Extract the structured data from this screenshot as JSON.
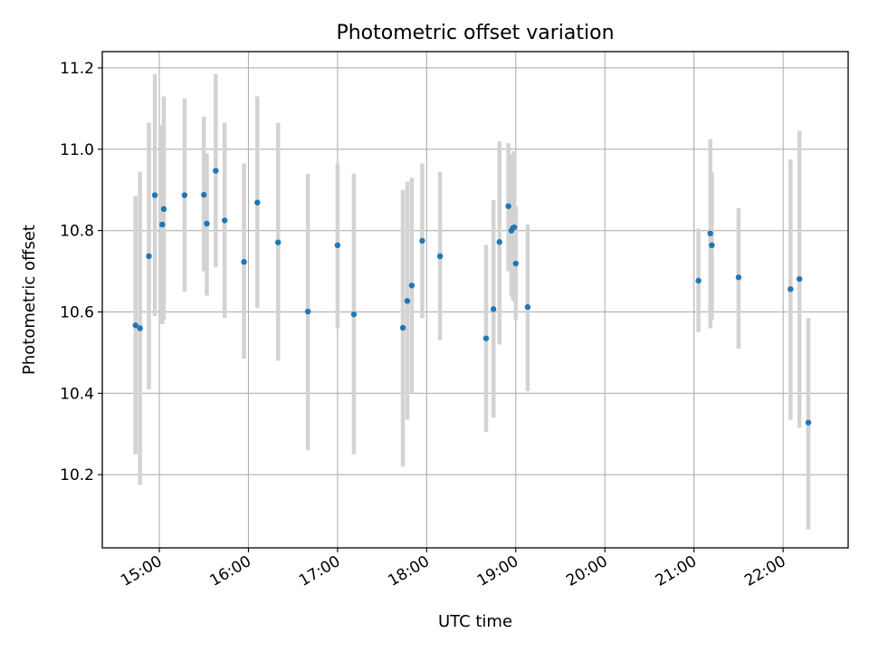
{
  "chart_data": {
    "type": "scatter",
    "title": "Photometric offset variation",
    "xlabel": "UTC time",
    "ylabel": "Photometric offset",
    "x_unit": "hours UTC",
    "xlim": [
      14.36,
      22.73
    ],
    "ylim": [
      10.02,
      11.24
    ],
    "grid": true,
    "marker_color": "#1f77b4",
    "errorbar_color": "#d3d3d3",
    "x_ticks": [
      {
        "value": 15,
        "label": "15:00"
      },
      {
        "value": 16,
        "label": "16:00"
      },
      {
        "value": 17,
        "label": "17:00"
      },
      {
        "value": 18,
        "label": "18:00"
      },
      {
        "value": 19,
        "label": "19:00"
      },
      {
        "value": 20,
        "label": "20:00"
      },
      {
        "value": 21,
        "label": "21:00"
      },
      {
        "value": 22,
        "label": "22:00"
      }
    ],
    "y_ticks": [
      {
        "value": 10.2,
        "label": "10.2"
      },
      {
        "value": 10.4,
        "label": "10.4"
      },
      {
        "value": 10.6,
        "label": "10.6"
      },
      {
        "value": 10.8,
        "label": "10.8"
      },
      {
        "value": 11.0,
        "label": "11.0"
      },
      {
        "value": 11.2,
        "label": "11.2"
      }
    ],
    "points": [
      {
        "x": 14.733,
        "y": 10.567,
        "lo": 10.25,
        "hi": 10.885
      },
      {
        "x": 14.783,
        "y": 10.56,
        "lo": 10.175,
        "hi": 10.945
      },
      {
        "x": 14.883,
        "y": 10.737,
        "lo": 10.41,
        "hi": 11.065
      },
      {
        "x": 14.95,
        "y": 10.887,
        "lo": 10.59,
        "hi": 11.185
      },
      {
        "x": 15.033,
        "y": 10.815,
        "lo": 10.57,
        "hi": 11.06
      },
      {
        "x": 15.05,
        "y": 10.853,
        "lo": 10.58,
        "hi": 11.13
      },
      {
        "x": 15.283,
        "y": 10.887,
        "lo": 10.65,
        "hi": 11.125
      },
      {
        "x": 15.5,
        "y": 10.888,
        "lo": 10.7,
        "hi": 11.08
      },
      {
        "x": 15.533,
        "y": 10.817,
        "lo": 10.64,
        "hi": 10.99
      },
      {
        "x": 15.633,
        "y": 10.947,
        "lo": 10.71,
        "hi": 11.185
      },
      {
        "x": 15.733,
        "y": 10.825,
        "lo": 10.585,
        "hi": 11.065
      },
      {
        "x": 15.95,
        "y": 10.723,
        "lo": 10.485,
        "hi": 10.965
      },
      {
        "x": 16.1,
        "y": 10.869,
        "lo": 10.61,
        "hi": 11.13
      },
      {
        "x": 16.333,
        "y": 10.771,
        "lo": 10.48,
        "hi": 11.065
      },
      {
        "x": 16.667,
        "y": 10.601,
        "lo": 10.26,
        "hi": 10.94
      },
      {
        "x": 17.0,
        "y": 10.764,
        "lo": 10.56,
        "hi": 10.965
      },
      {
        "x": 17.183,
        "y": 10.594,
        "lo": 10.25,
        "hi": 10.94
      },
      {
        "x": 17.733,
        "y": 10.561,
        "lo": 10.22,
        "hi": 10.9
      },
      {
        "x": 17.783,
        "y": 10.627,
        "lo": 10.335,
        "hi": 10.92
      },
      {
        "x": 17.833,
        "y": 10.665,
        "lo": 10.4,
        "hi": 10.93
      },
      {
        "x": 17.95,
        "y": 10.775,
        "lo": 10.585,
        "hi": 10.965
      },
      {
        "x": 18.15,
        "y": 10.737,
        "lo": 10.53,
        "hi": 10.945
      },
      {
        "x": 18.667,
        "y": 10.535,
        "lo": 10.305,
        "hi": 10.765
      },
      {
        "x": 18.75,
        "y": 10.607,
        "lo": 10.34,
        "hi": 10.875
      },
      {
        "x": 18.817,
        "y": 10.772,
        "lo": 10.52,
        "hi": 11.02
      },
      {
        "x": 18.917,
        "y": 10.86,
        "lo": 10.7,
        "hi": 11.015
      },
      {
        "x": 18.95,
        "y": 10.8,
        "lo": 10.64,
        "hi": 10.985
      },
      {
        "x": 18.967,
        "y": 10.806,
        "lo": 10.63,
        "hi": 10.99
      },
      {
        "x": 18.983,
        "y": 10.808,
        "lo": 10.625,
        "hi": 10.995
      },
      {
        "x": 19.0,
        "y": 10.719,
        "lo": 10.58,
        "hi": 10.86
      },
      {
        "x": 19.133,
        "y": 10.612,
        "lo": 10.405,
        "hi": 10.815
      },
      {
        "x": 21.05,
        "y": 10.677,
        "lo": 10.55,
        "hi": 10.805
      },
      {
        "x": 21.183,
        "y": 10.793,
        "lo": 10.56,
        "hi": 11.025
      },
      {
        "x": 21.2,
        "y": 10.764,
        "lo": 10.58,
        "hi": 10.945
      },
      {
        "x": 21.5,
        "y": 10.685,
        "lo": 10.51,
        "hi": 10.855
      },
      {
        "x": 22.083,
        "y": 10.656,
        "lo": 10.335,
        "hi": 10.975
      },
      {
        "x": 22.183,
        "y": 10.681,
        "lo": 10.315,
        "hi": 11.045
      },
      {
        "x": 22.283,
        "y": 10.328,
        "lo": 10.065,
        "hi": 10.585
      }
    ]
  }
}
